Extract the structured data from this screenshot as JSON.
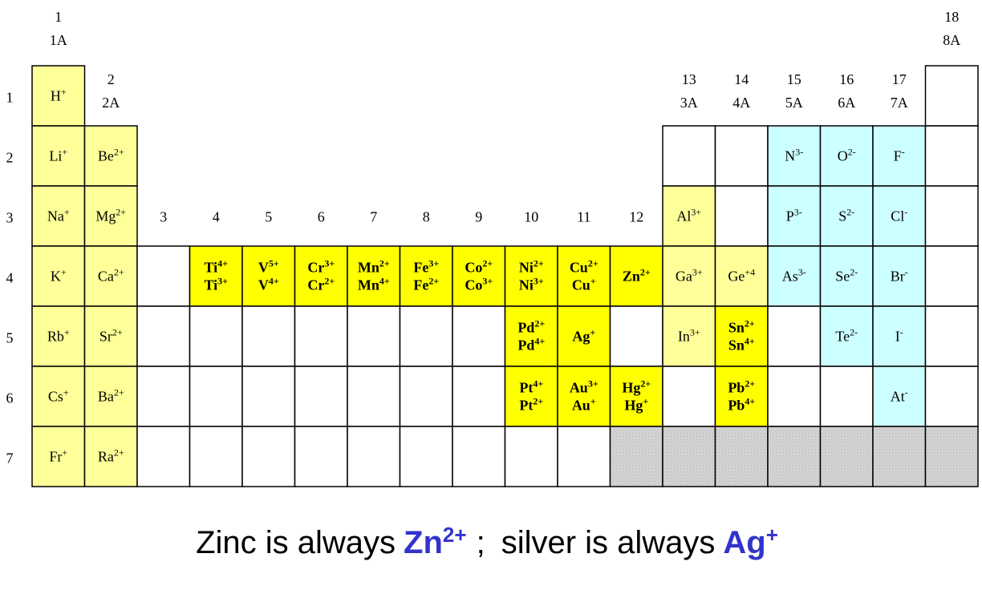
{
  "groups": [
    {
      "number": "1",
      "label": "1A"
    },
    {
      "number": "2",
      "label": "2A"
    },
    {
      "number": "3"
    },
    {
      "number": "4"
    },
    {
      "number": "5"
    },
    {
      "number": "6"
    },
    {
      "number": "7"
    },
    {
      "number": "8"
    },
    {
      "number": "9"
    },
    {
      "number": "10"
    },
    {
      "number": "11"
    },
    {
      "number": "12"
    },
    {
      "number": "13",
      "label": "3A"
    },
    {
      "number": "14",
      "label": "4A"
    },
    {
      "number": "15",
      "label": "5A"
    },
    {
      "number": "16",
      "label": "6A"
    },
    {
      "number": "17",
      "label": "7A"
    },
    {
      "number": "18",
      "label": "8A"
    }
  ],
  "periods": [
    "1",
    "2",
    "3",
    "4",
    "5",
    "6",
    "7"
  ],
  "rows": [
    [
      [
        [
          "H",
          "+"
        ]
      ],
      null,
      null,
      null,
      null,
      null,
      null,
      null,
      null,
      null,
      null,
      null,
      null,
      null,
      null,
      null,
      null,
      []
    ],
    [
      [
        [
          "Li",
          "+"
        ]
      ],
      [
        [
          "Be",
          "2+"
        ]
      ],
      null,
      null,
      null,
      null,
      null,
      null,
      null,
      null,
      null,
      null,
      [],
      [],
      [
        [
          "N",
          "3-"
        ]
      ],
      [
        [
          "O",
          "2-"
        ]
      ],
      [
        [
          "F",
          "-"
        ]
      ],
      []
    ],
    [
      [
        [
          "Na",
          "+"
        ]
      ],
      [
        [
          "Mg",
          "2+"
        ]
      ],
      null,
      null,
      null,
      null,
      null,
      null,
      null,
      null,
      null,
      null,
      [
        [
          "Al",
          "3+"
        ]
      ],
      [],
      [
        [
          "P",
          "3-"
        ]
      ],
      [
        [
          "S",
          "2-"
        ]
      ],
      [
        [
          "Cl",
          "-"
        ]
      ],
      []
    ],
    [
      [
        [
          "K",
          "+"
        ]
      ],
      [
        [
          "Ca",
          "2+"
        ]
      ],
      [],
      [
        [
          "Ti",
          "4+"
        ],
        [
          "Ti",
          "3+"
        ]
      ],
      [
        [
          "V",
          "5+"
        ],
        [
          "V",
          "4+"
        ]
      ],
      [
        [
          "Cr",
          "3+"
        ],
        [
          "Cr",
          "2+"
        ]
      ],
      [
        [
          "Mn",
          "2+"
        ],
        [
          "Mn",
          "4+"
        ]
      ],
      [
        [
          "Fe",
          "3+"
        ],
        [
          "Fe",
          "2+"
        ]
      ],
      [
        [
          "Co",
          "2+"
        ],
        [
          "Co",
          "3+"
        ]
      ],
      [
        [
          "Ni",
          "2+"
        ],
        [
          "Ni",
          "3+"
        ]
      ],
      [
        [
          "Cu",
          "2+"
        ],
        [
          "Cu",
          "+"
        ]
      ],
      [
        [
          "Zn",
          "2+"
        ]
      ],
      [
        [
          "Ga",
          "3+"
        ]
      ],
      [
        [
          "Ge",
          "+4"
        ]
      ],
      [
        [
          "As",
          "3-"
        ]
      ],
      [
        [
          "Se",
          "2-"
        ]
      ],
      [
        [
          "Br",
          "-"
        ]
      ],
      []
    ],
    [
      [
        [
          "Rb",
          "+"
        ]
      ],
      [
        [
          "Sr",
          "2+"
        ]
      ],
      [],
      [],
      [],
      [],
      [],
      [],
      [],
      [
        [
          "Pd",
          "2+"
        ],
        [
          "Pd",
          "4+"
        ]
      ],
      [
        [
          "Ag",
          "+"
        ]
      ],
      [],
      [
        [
          "In",
          "3+"
        ]
      ],
      [
        [
          "Sn",
          "2+"
        ],
        [
          "Sn",
          "4+"
        ]
      ],
      [],
      [
        [
          "Te",
          "2-"
        ]
      ],
      [
        [
          "I",
          "-"
        ]
      ],
      []
    ],
    [
      [
        [
          "Cs",
          "+"
        ]
      ],
      [
        [
          "Ba",
          "2+"
        ]
      ],
      [],
      [],
      [],
      [],
      [],
      [],
      [],
      [
        [
          "Pt",
          "4+"
        ],
        [
          "Pt",
          "2+"
        ]
      ],
      [
        [
          "Au",
          "3+"
        ],
        [
          "Au",
          "+"
        ]
      ],
      [
        [
          "Hg",
          "2+"
        ],
        [
          "Hg",
          "+"
        ]
      ],
      [],
      [
        [
          "Pb",
          "2+"
        ],
        [
          "Pb",
          "4+"
        ]
      ],
      [],
      [],
      [
        [
          "At",
          "-"
        ]
      ],
      []
    ],
    [
      [
        [
          "Fr",
          "+"
        ]
      ],
      [
        [
          "Ra",
          "2+"
        ]
      ],
      [],
      [],
      [],
      [],
      [],
      [],
      [],
      [],
      [],
      [],
      [],
      [],
      [],
      [],
      [],
      []
    ]
  ],
  "footer": {
    "text_1": "Zinc is always",
    "ion_1": {
      "symbol": "Zn",
      "charge": "2+"
    },
    "separator": ";",
    "text_2": "silver is always",
    "ion_2": {
      "symbol": "Ag",
      "charge": "+"
    }
  }
}
